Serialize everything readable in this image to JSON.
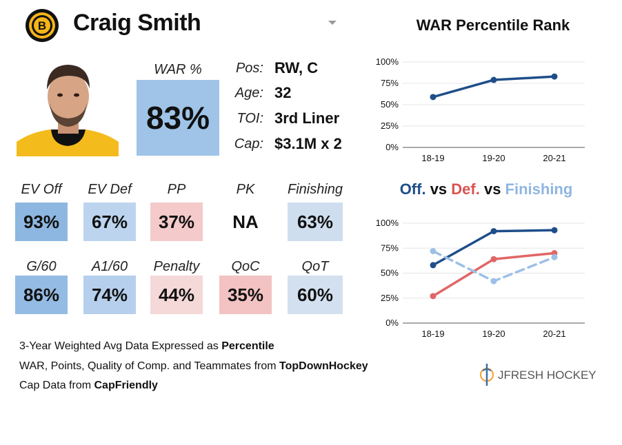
{
  "player": {
    "name": "Craig Smith",
    "team_logo": "bruins-logo-icon"
  },
  "war": {
    "label": "WAR %",
    "value": "83%",
    "color": "#9fc4e8"
  },
  "info": [
    {
      "label": "Pos:",
      "value": "RW, C"
    },
    {
      "label": "Age:",
      "value": "32"
    },
    {
      "label": "TOI:",
      "value": "3rd Liner"
    },
    {
      "label": "Cap:",
      "value": "$3.1M x 2"
    }
  ],
  "stats_row1": [
    {
      "label": "EV Off",
      "value": "93%",
      "color": "#8db7e0"
    },
    {
      "label": "EV Def",
      "value": "67%",
      "color": "#bdd4ee"
    },
    {
      "label": "PP",
      "value": "37%",
      "color": "#f5caca"
    },
    {
      "label": "PK",
      "value": "NA",
      "color": "#ffffff"
    },
    {
      "label": "Finishing",
      "value": "63%",
      "color": "#cfdeef"
    }
  ],
  "stats_row2": [
    {
      "label": "G/60",
      "value": "86%",
      "color": "#94bbe3"
    },
    {
      "label": "A1/60",
      "value": "74%",
      "color": "#b6cfec"
    },
    {
      "label": "Penalty",
      "value": "44%",
      "color": "#f5d8d8"
    },
    {
      "label": "QoC",
      "value": "35%",
      "color": "#f3c2c2"
    },
    {
      "label": "QoT",
      "value": "60%",
      "color": "#d3e0ef"
    }
  ],
  "notes": {
    "line1_prefix": "3-Year Weighted Avg Data Expressed as ",
    "line1_bold": "Percentile",
    "line2_prefix": "WAR, Points, Quality of Comp. and Teammates from ",
    "line2_bold": "TopDownHockey",
    "line3_prefix": "Cap Data from ",
    "line3_bold": "CapFriendly"
  },
  "brand": "JFRESH HOCKEY",
  "chart_data": [
    {
      "type": "line",
      "title": "WAR Percentile Rank",
      "categories": [
        "18-19",
        "19-20",
        "20-21"
      ],
      "series": [
        {
          "values": [
            59,
            79,
            83
          ],
          "color": "#1f4e89"
        }
      ],
      "ylim": [
        0,
        100
      ],
      "yticks": [
        "0%",
        "25%",
        "50%",
        "75%",
        "100%"
      ],
      "grid": true
    },
    {
      "type": "line",
      "title_parts": [
        {
          "text": "Off.",
          "color": "#1f4e89"
        },
        {
          "text": " vs ",
          "color": "#111111"
        },
        {
          "text": "Def.",
          "color": "#d9534f"
        },
        {
          "text": " vs ",
          "color": "#111111"
        },
        {
          "text": "Finishing",
          "color": "#8fb6e0"
        }
      ],
      "categories": [
        "18-19",
        "19-20",
        "20-21"
      ],
      "series": [
        {
          "values": [
            58,
            92,
            93
          ],
          "color": "#1f4e89",
          "dash": false
        },
        {
          "values": [
            27,
            64,
            70
          ],
          "color": "#e06666",
          "dash": false
        },
        {
          "values": [
            72,
            42,
            66
          ],
          "color": "#9cc0e6",
          "dash": true
        }
      ],
      "ylim": [
        0,
        100
      ],
      "yticks": [
        "0%",
        "25%",
        "50%",
        "75%",
        "100%"
      ],
      "grid": true
    }
  ]
}
